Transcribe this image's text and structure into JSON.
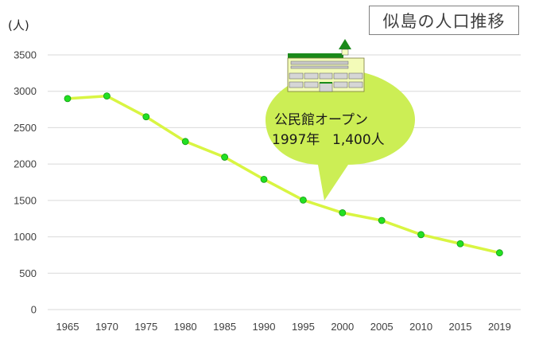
{
  "chart_data": {
    "type": "line",
    "title": "似島の人口推移",
    "ylabel": "(人)",
    "xlabel": "",
    "categories": [
      "1965",
      "1970",
      "1975",
      "1980",
      "1985",
      "1990",
      "1995",
      "2000",
      "2005",
      "2010",
      "2015",
      "2019"
    ],
    "series": [
      {
        "values": [
          2900,
          2935,
          2650,
          2310,
          2095,
          1790,
          1505,
          1330,
          1225,
          1030,
          905,
          780
        ]
      }
    ],
    "ylim": [
      0,
      3500
    ],
    "yticks": [
      0,
      500,
      1000,
      1500,
      2000,
      2500,
      3000,
      3500
    ],
    "grid": true,
    "annotation": {
      "line1": "公民館オープン",
      "line2_year": "1997年",
      "line2_value": "1,400人",
      "icon": "community-hall-building-icon"
    },
    "colors": {
      "line": "#d9f542",
      "marker": "#22e022",
      "marker_edge": "#149914",
      "bubble": "#ccee55",
      "grid": "#d9d9d9"
    }
  }
}
